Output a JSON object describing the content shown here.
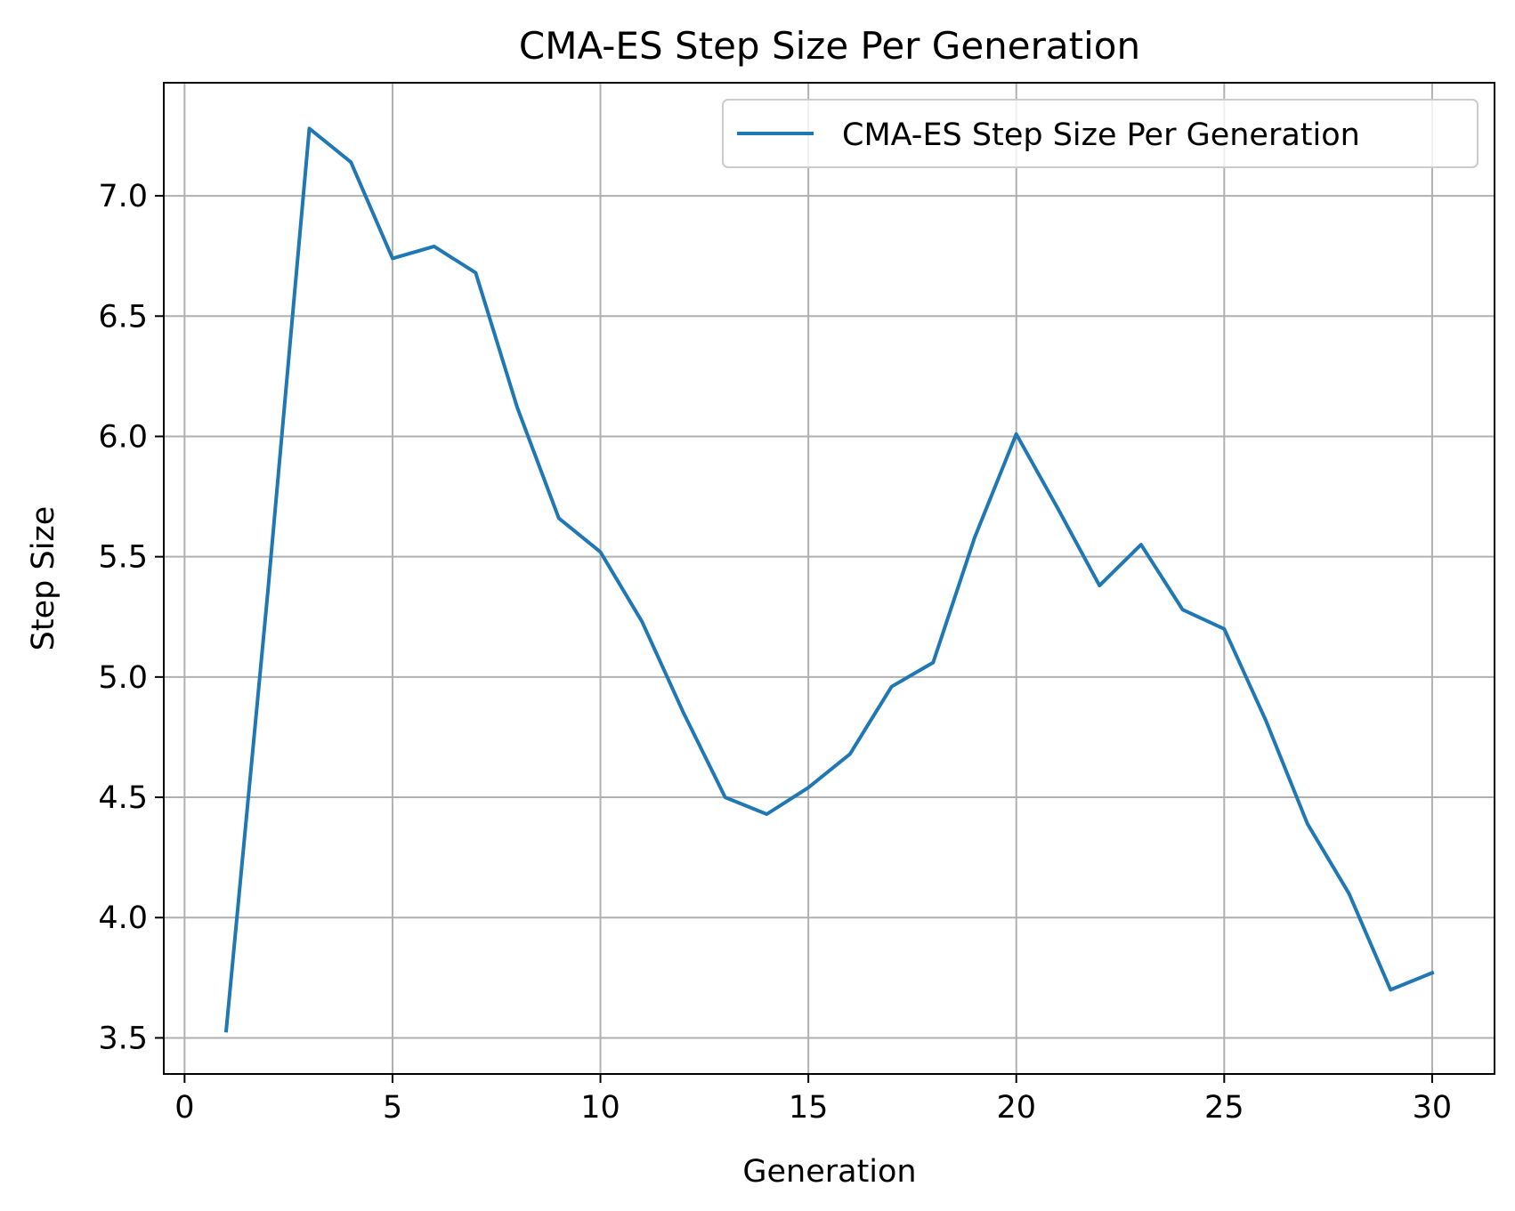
{
  "chart_data": {
    "type": "line",
    "title": "CMA-ES Step Size Per Generation",
    "xlabel": "Generation",
    "ylabel": "Step Size",
    "xlim": [
      -0.5,
      31.5
    ],
    "ylim": [
      3.35,
      7.47
    ],
    "x_ticks": [
      0,
      5,
      10,
      15,
      20,
      25,
      30
    ],
    "y_ticks": [
      3.5,
      4.0,
      4.5,
      5.0,
      5.5,
      6.0,
      6.5,
      7.0
    ],
    "grid": true,
    "legend_location": "upper right",
    "series": [
      {
        "name": "CMA-ES Step Size Per Generation",
        "color": "#1f77b4",
        "x": [
          1,
          2,
          3,
          4,
          5,
          6,
          7,
          8,
          9,
          10,
          11,
          12,
          13,
          14,
          15,
          16,
          17,
          18,
          19,
          20,
          21,
          22,
          23,
          24,
          25,
          26,
          27,
          28,
          29,
          30
        ],
        "y": [
          3.53,
          5.35,
          7.28,
          7.14,
          6.74,
          6.79,
          6.68,
          6.12,
          5.66,
          5.52,
          5.23,
          4.85,
          4.5,
          4.43,
          4.54,
          4.68,
          4.96,
          5.06,
          5.58,
          6.01,
          5.7,
          5.38,
          5.55,
          5.28,
          5.2,
          4.82,
          4.39,
          4.1,
          3.7,
          3.77
        ]
      }
    ]
  }
}
